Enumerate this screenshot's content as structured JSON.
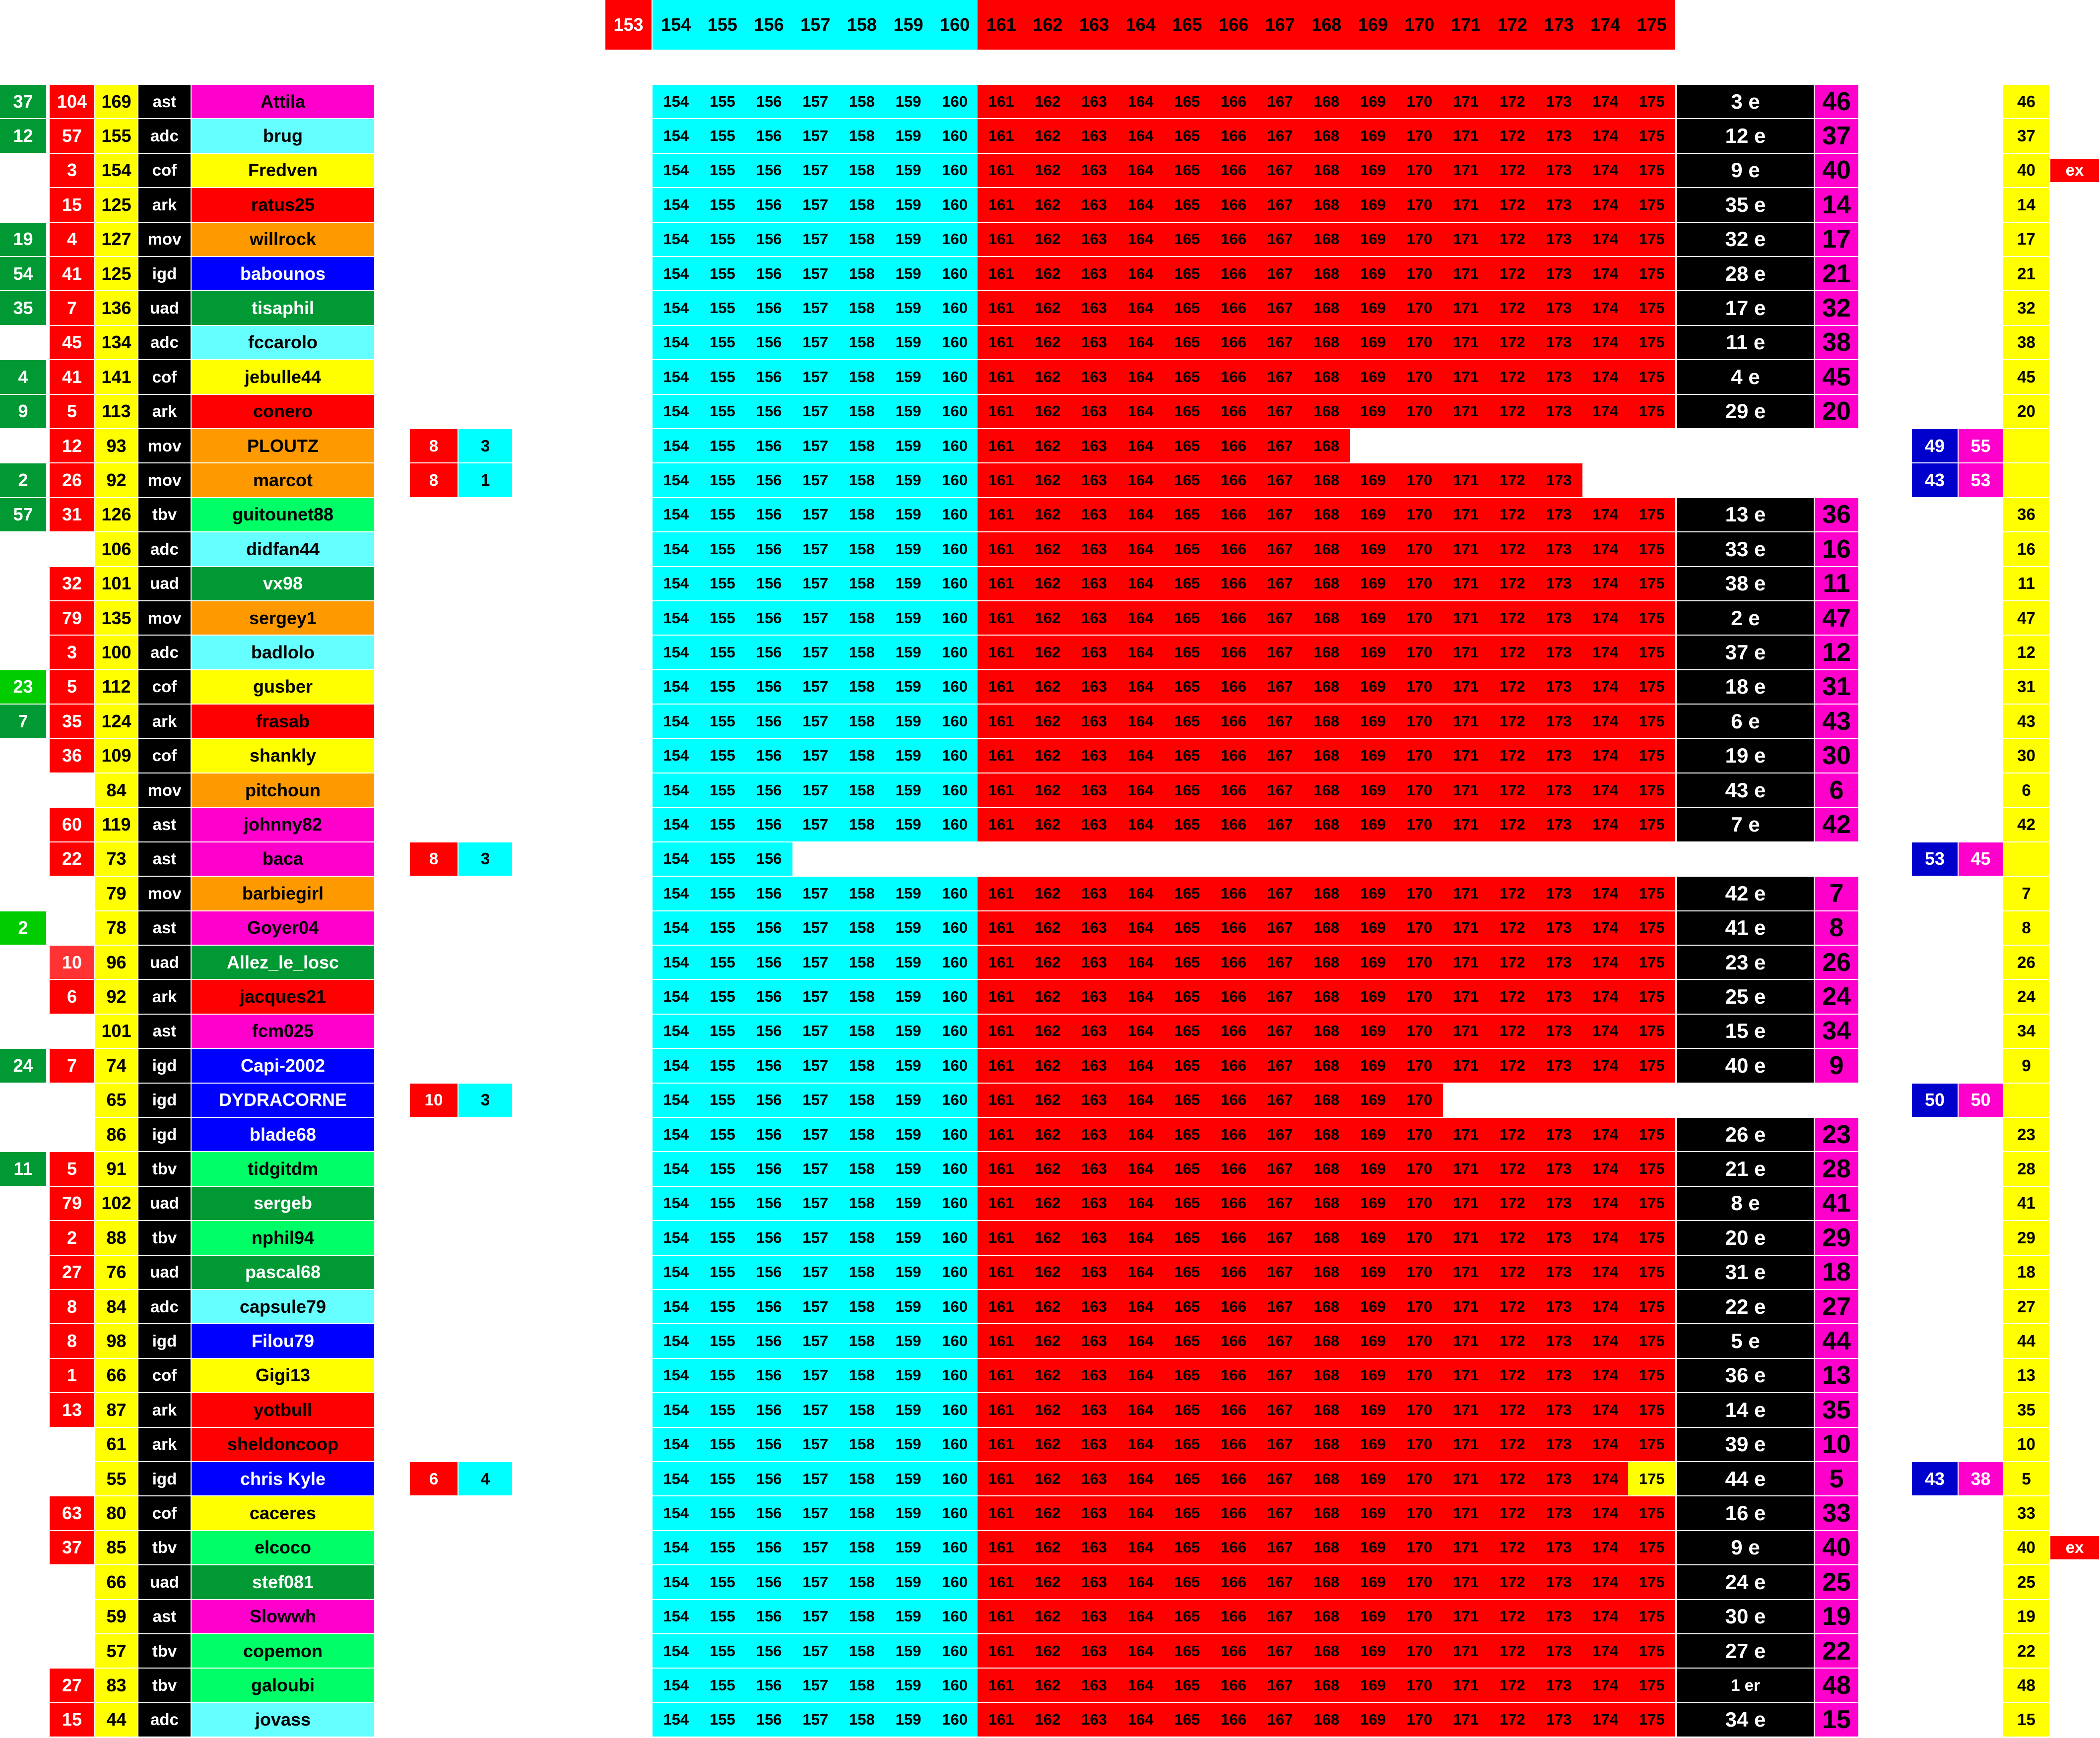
{
  "header": {
    "first": "153",
    "days": [
      "154",
      "155",
      "156",
      "157",
      "158",
      "159",
      "160",
      "161",
      "162",
      "163",
      "164",
      "165",
      "166",
      "167",
      "168",
      "169",
      "170",
      "171",
      "172",
      "173",
      "174",
      "175"
    ]
  },
  "team_colors": {
    "ast": "#ff00cc",
    "adc": "#66ffff",
    "cof": "#ffff00",
    "ark": "#ff0000",
    "mov": "#ff9900",
    "igd": "#0000ff",
    "uad": "#009933",
    "tbv": "#00ff66"
  },
  "colors": {
    "green": "#009933",
    "light_green": "#00cc00",
    "red": "#ff0000",
    "light_red": "#ff3333",
    "yellow": "#ffff00",
    "black": "#000000",
    "magenta": "#ff00cc",
    "cyan": "#00ffff",
    "navy": "#0000cc",
    "day_red": "#ff0000"
  },
  "rows": [
    {
      "g": "37",
      "r": "104",
      "y": "169",
      "team": "ast",
      "name": "Attila",
      "days": 22,
      "rank": "3 e",
      "score": "46",
      "final": "46"
    },
    {
      "g": "12",
      "r": "57",
      "y": "155",
      "team": "adc",
      "name": "brug",
      "days": 22,
      "rank": "12 e",
      "score": "37",
      "final": "37"
    },
    {
      "g": "",
      "r": "3",
      "y": "154",
      "team": "cof",
      "name": "Fredven",
      "days": 22,
      "rank": "9 e",
      "score": "40",
      "final": "40",
      "ex": "ex"
    },
    {
      "g": "",
      "r": "15",
      "y": "125",
      "team": "ark",
      "name": "ratus25",
      "days": 22,
      "rank": "35 e",
      "score": "14",
      "final": "14"
    },
    {
      "g": "19",
      "r": "4",
      "y": "127",
      "team": "mov",
      "name": "willrock",
      "days": 22,
      "rank": "32 e",
      "score": "17",
      "final": "17"
    },
    {
      "g": "54",
      "r": "41",
      "y": "125",
      "team": "igd",
      "name": "babounos",
      "days": 22,
      "rank": "28 e",
      "score": "21",
      "final": "21"
    },
    {
      "g": "35",
      "r": "7",
      "y": "136",
      "team": "uad",
      "name": "tisaphil",
      "days": 22,
      "rank": "17 e",
      "score": "32",
      "final": "32"
    },
    {
      "g": "",
      "r": "45",
      "y": "134",
      "team": "adc",
      "name": "fccarolo",
      "days": 22,
      "rank": "11 e",
      "score": "38",
      "final": "38"
    },
    {
      "g": "4",
      "r": "41",
      "y": "141",
      "team": "cof",
      "name": "jebulle44",
      "days": 22,
      "rank": "4 e",
      "score": "45",
      "final": "45"
    },
    {
      "g": "9",
      "r": "5",
      "y": "113",
      "team": "ark",
      "name": "conero",
      "days": 22,
      "rank": "29 e",
      "score": "20",
      "final": "20"
    },
    {
      "g": "",
      "r": "12",
      "y": "93",
      "team": "mov",
      "name": "PLOUTZ",
      "days": 15,
      "mid": [
        "8",
        "3"
      ],
      "blue": [
        "49",
        "55"
      ]
    },
    {
      "g": "2",
      "r": "26",
      "y": "92",
      "team": "mov",
      "name": "marcot",
      "days": 20,
      "mid": [
        "8",
        "1"
      ],
      "blue": [
        "43",
        "53"
      ]
    },
    {
      "g": "57",
      "r": "31",
      "y": "126",
      "team": "tbv",
      "name": "guitounet88",
      "days": 22,
      "rank": "13 e",
      "score": "36",
      "final": "36"
    },
    {
      "g": "",
      "r": "",
      "y": "106",
      "team": "adc",
      "name": "didfan44",
      "days": 22,
      "rank": "33 e",
      "score": "16",
      "final": "16"
    },
    {
      "g": "",
      "r": "32",
      "y": "101",
      "team": "uad",
      "name": "vx98",
      "days": 22,
      "rank": "38 e",
      "score": "11",
      "final": "11"
    },
    {
      "g": "",
      "r": "79",
      "y": "135",
      "team": "mov",
      "name": "sergey1",
      "days": 22,
      "rank": "2 e",
      "score": "47",
      "final": "47"
    },
    {
      "g": "",
      "r": "3",
      "y": "100",
      "team": "adc",
      "name": "badlolo",
      "days": 22,
      "rank": "37 e",
      "score": "12",
      "final": "12"
    },
    {
      "g": "23",
      "gl": true,
      "r": "5",
      "y": "112",
      "team": "cof",
      "name": "gusber",
      "days": 22,
      "rank": "18 e",
      "score": "31",
      "final": "31"
    },
    {
      "g": "7",
      "r": "35",
      "y": "124",
      "team": "ark",
      "name": "frasab",
      "days": 22,
      "rank": "6 e",
      "score": "43",
      "final": "43"
    },
    {
      "g": "",
      "r": "36",
      "y": "109",
      "team": "cof",
      "name": "shankly",
      "days": 22,
      "rank": "19 e",
      "score": "30",
      "final": "30"
    },
    {
      "g": "",
      "r": "",
      "y": "84",
      "team": "mov",
      "name": "pitchoun",
      "days": 22,
      "rank": "43 e",
      "score": "6",
      "final": "6"
    },
    {
      "g": "",
      "r": "60",
      "y": "119",
      "team": "ast",
      "name": "johnny82",
      "days": 22,
      "rank": "7 e",
      "score": "42",
      "final": "42"
    },
    {
      "g": "",
      "r": "22",
      "y": "73",
      "team": "ast",
      "name": "baca",
      "days": 3,
      "mid": [
        "8",
        "3"
      ],
      "blue": [
        "53",
        "45"
      ]
    },
    {
      "g": "",
      "r": "",
      "y": "79",
      "team": "mov",
      "name": "barbiegirl",
      "days": 22,
      "rank": "42 e",
      "score": "7",
      "final": "7"
    },
    {
      "g": "2",
      "gl": true,
      "r": "",
      "y": "78",
      "team": "ast",
      "name": "Goyer04",
      "days": 22,
      "rank": "41 e",
      "score": "8",
      "final": "8"
    },
    {
      "g": "",
      "r": "10",
      "rl": true,
      "y": "96",
      "team": "uad",
      "name": "Allez_le_losc",
      "days": 22,
      "rank": "23 e",
      "score": "26",
      "final": "26"
    },
    {
      "g": "",
      "r": "6",
      "y": "92",
      "team": "ark",
      "name": "jacques21",
      "days": 22,
      "rank": "25 e",
      "score": "24",
      "final": "24"
    },
    {
      "g": "",
      "r": "",
      "y": "101",
      "team": "ast",
      "name": "fcm025",
      "days": 22,
      "rank": "15 e",
      "score": "34",
      "final": "34"
    },
    {
      "g": "24",
      "r": "7",
      "y": "74",
      "team": "igd",
      "name": "Capi-2002",
      "days": 22,
      "rank": "40 e",
      "score": "9",
      "final": "9"
    },
    {
      "g": "",
      "r": "",
      "y": "65",
      "team": "igd",
      "name": "DYDRACORNE",
      "days": 17,
      "mid": [
        "10",
        "3"
      ],
      "blue": [
        "50",
        "50"
      ]
    },
    {
      "g": "",
      "r": "",
      "y": "86",
      "team": "igd",
      "name": "blade68",
      "days": 22,
      "rank": "26 e",
      "score": "23",
      "final": "23"
    },
    {
      "g": "11",
      "r": "5",
      "y": "91",
      "team": "tbv",
      "name": "tidgitdm",
      "days": 22,
      "rank": "21 e",
      "score": "28",
      "final": "28"
    },
    {
      "g": "",
      "r": "79",
      "y": "102",
      "team": "uad",
      "name": "sergeb",
      "days": 22,
      "rank": "8 e",
      "score": "41",
      "final": "41"
    },
    {
      "g": "",
      "r": "2",
      "y": "88",
      "team": "tbv",
      "name": "nphil94",
      "days": 22,
      "rank": "20 e",
      "score": "29",
      "final": "29"
    },
    {
      "g": "",
      "r": "27",
      "y": "76",
      "team": "uad",
      "name": "pascal68",
      "days": 22,
      "rank": "31 e",
      "score": "18",
      "final": "18"
    },
    {
      "g": "",
      "r": "8",
      "y": "84",
      "team": "adc",
      "name": "capsule79",
      "days": 22,
      "rank": "22 e",
      "score": "27",
      "final": "27"
    },
    {
      "g": "",
      "r": "8",
      "y": "98",
      "team": "igd",
      "name": "Filou79",
      "days": 22,
      "rank": "5 e",
      "score": "44",
      "final": "44"
    },
    {
      "g": "",
      "r": "1",
      "y": "66",
      "team": "cof",
      "name": "Gigi13",
      "days": 22,
      "rank": "36 e",
      "score": "13",
      "final": "13"
    },
    {
      "g": "",
      "r": "13",
      "y": "87",
      "team": "ark",
      "name": "yotbull",
      "days": 22,
      "rank": "14 e",
      "score": "35",
      "final": "35"
    },
    {
      "g": "",
      "r": "",
      "y": "61",
      "team": "ark",
      "name": "sheldoncoop",
      "days": 22,
      "rank": "39 e",
      "score": "10",
      "final": "10"
    },
    {
      "g": "",
      "r": "",
      "y": "55",
      "team": "igd",
      "name": "chris Kyle",
      "days": 22,
      "hl": 21,
      "mid": [
        "6",
        "4"
      ],
      "blue": [
        "43",
        "38"
      ],
      "rank": "44 e",
      "score": "5",
      "final": "5"
    },
    {
      "g": "",
      "r": "63",
      "y": "80",
      "team": "cof",
      "name": "caceres",
      "days": 22,
      "rank": "16 e",
      "score": "33",
      "final": "33"
    },
    {
      "g": "",
      "r": "37",
      "y": "85",
      "team": "tbv",
      "name": "elcoco",
      "days": 22,
      "rank": "9 e",
      "score": "40",
      "final": "40",
      "ex": "ex"
    },
    {
      "g": "",
      "r": "",
      "y": "66",
      "team": "uad",
      "name": "stef081",
      "days": 22,
      "rank": "24 e",
      "score": "25",
      "final": "25"
    },
    {
      "g": "",
      "r": "",
      "y": "59",
      "team": "ast",
      "name": "Slowwh",
      "days": 22,
      "rank": "30 e",
      "score": "19",
      "final": "19"
    },
    {
      "g": "",
      "r": "",
      "y": "57",
      "team": "tbv",
      "name": "copemon",
      "days": 22,
      "rank": "27 e",
      "score": "22",
      "final": "22"
    },
    {
      "g": "",
      "r": "27",
      "y": "83",
      "team": "tbv",
      "name": "galoubi",
      "days": 22,
      "rank": "1 er",
      "score": "48",
      "final": "48"
    },
    {
      "g": "",
      "r": "15",
      "y": "44",
      "team": "adc",
      "name": "jovass",
      "days": 22,
      "rank": "34 e",
      "score": "15",
      "final": "15"
    }
  ]
}
